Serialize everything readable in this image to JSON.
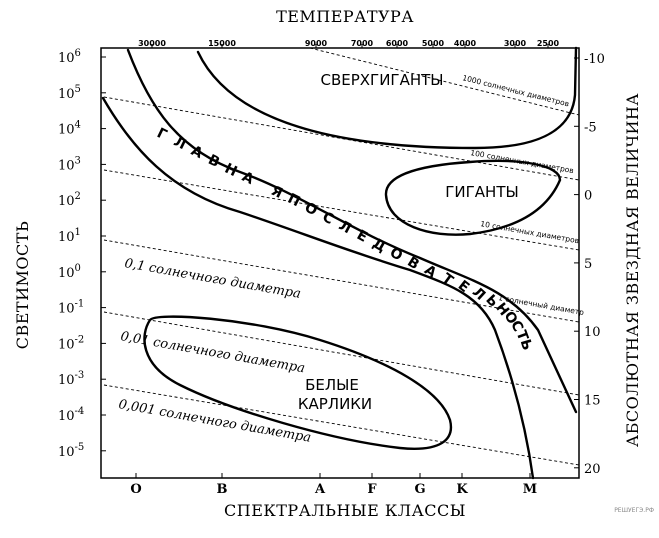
{
  "top_title": "ТЕМПЕРАТУРА",
  "left_title": "СВЕТИМОСТЬ",
  "right_title": "АБСОЛЮТНАЯ ЗВЕЗДНАЯ ВЕЛИЧИНА",
  "bottom_title": "СПЕКТРАЛЬНЫЕ КЛАССЫ",
  "temperature_ticks": [
    "30000",
    "15000",
    "9000",
    "7000",
    "6000",
    "5000",
    "4000",
    "3000",
    "2500"
  ],
  "luminosity_ticks": [
    {
      "base": "10",
      "exp": "6"
    },
    {
      "base": "10",
      "exp": "5"
    },
    {
      "base": "10",
      "exp": "4"
    },
    {
      "base": "10",
      "exp": "3"
    },
    {
      "base": "10",
      "exp": "2"
    },
    {
      "base": "10",
      "exp": "1"
    },
    {
      "base": "10",
      "exp": "0"
    },
    {
      "base": "10",
      "exp": "-1"
    },
    {
      "base": "10",
      "exp": "-2"
    },
    {
      "base": "10",
      "exp": "-3"
    },
    {
      "base": "10",
      "exp": "-4"
    },
    {
      "base": "10",
      "exp": "-5"
    }
  ],
  "magnitude_ticks": [
    "-10",
    "-5",
    "0",
    "5",
    "10",
    "15",
    "20"
  ],
  "spectral_classes": [
    "O",
    "B",
    "A",
    "F",
    "G",
    "K",
    "M"
  ],
  "regions": {
    "supergiants": "СВЕРХГИГАНТЫ",
    "giants": "ГИГАНТЫ",
    "white_dwarfs_line1": "БЕЛЫЕ",
    "white_dwarfs_line2": "КАРЛИКИ"
  },
  "main_sequence_letters": [
    "Г",
    "Л",
    "А",
    "В",
    "Н",
    "А",
    "Я",
    "П",
    "О",
    "С",
    "Л",
    "Е",
    "Д",
    "О",
    "В",
    "А",
    "Т",
    "Е",
    "Л",
    "Ь",
    "Н",
    "О",
    "С",
    "Т",
    "Ь"
  ],
  "diameter_labels": {
    "d1000": "1000 солнечных диаметров",
    "d100": "100 солнечных диаметров",
    "d10": "10 солнечных диаметров",
    "d1": "1 солнечный диаметр",
    "d01": "0,1 солнечного диаметра",
    "d001": "0,01 солнечного диаметра",
    "d0001": "0,001 солнечного диаметра"
  },
  "watermark": "РЕШУЕГЭ.РФ"
}
